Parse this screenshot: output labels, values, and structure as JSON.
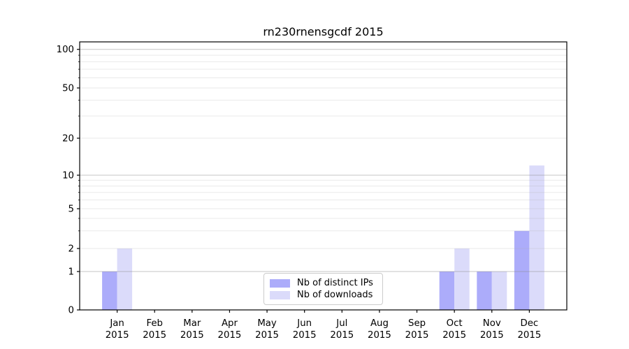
{
  "chart_data": {
    "type": "bar",
    "title": "rn230rnensgcdf 2015",
    "categories": [
      "Jan 2015",
      "Feb 2015",
      "Mar 2015",
      "Apr 2015",
      "May 2015",
      "Jun 2015",
      "Jul 2015",
      "Aug 2015",
      "Sep 2015",
      "Oct 2015",
      "Nov 2015",
      "Dec 2015"
    ],
    "series": [
      {
        "name": "Nb of distinct IPs",
        "color": "#acacfa",
        "values": [
          1,
          0,
          0,
          0,
          0,
          0,
          0,
          0,
          0,
          1,
          1,
          3
        ]
      },
      {
        "name": "Nb of downloads",
        "color": "#dbdbfa",
        "values": [
          2,
          0,
          0,
          0,
          0,
          0,
          0,
          0,
          0,
          2,
          1,
          12
        ]
      }
    ],
    "yscale": "symlog",
    "ylim": [
      0,
      115
    ],
    "y_ticks": [
      0,
      1,
      2,
      5,
      10,
      20,
      50,
      100
    ],
    "y_major_gridlines": [
      1,
      10,
      100
    ],
    "y_minor_gridlines": [
      2,
      3,
      4,
      5,
      6,
      7,
      8,
      9,
      20,
      30,
      40,
      50,
      60,
      70,
      80,
      90
    ],
    "grid": "horizontal major+minor, drawn over bars",
    "legend_position": "lower center",
    "colors": {
      "major_grid": "#8c8c8c",
      "minor_grid": "#aaaaaa",
      "axis": "#000000",
      "background": "#ffffff"
    }
  }
}
